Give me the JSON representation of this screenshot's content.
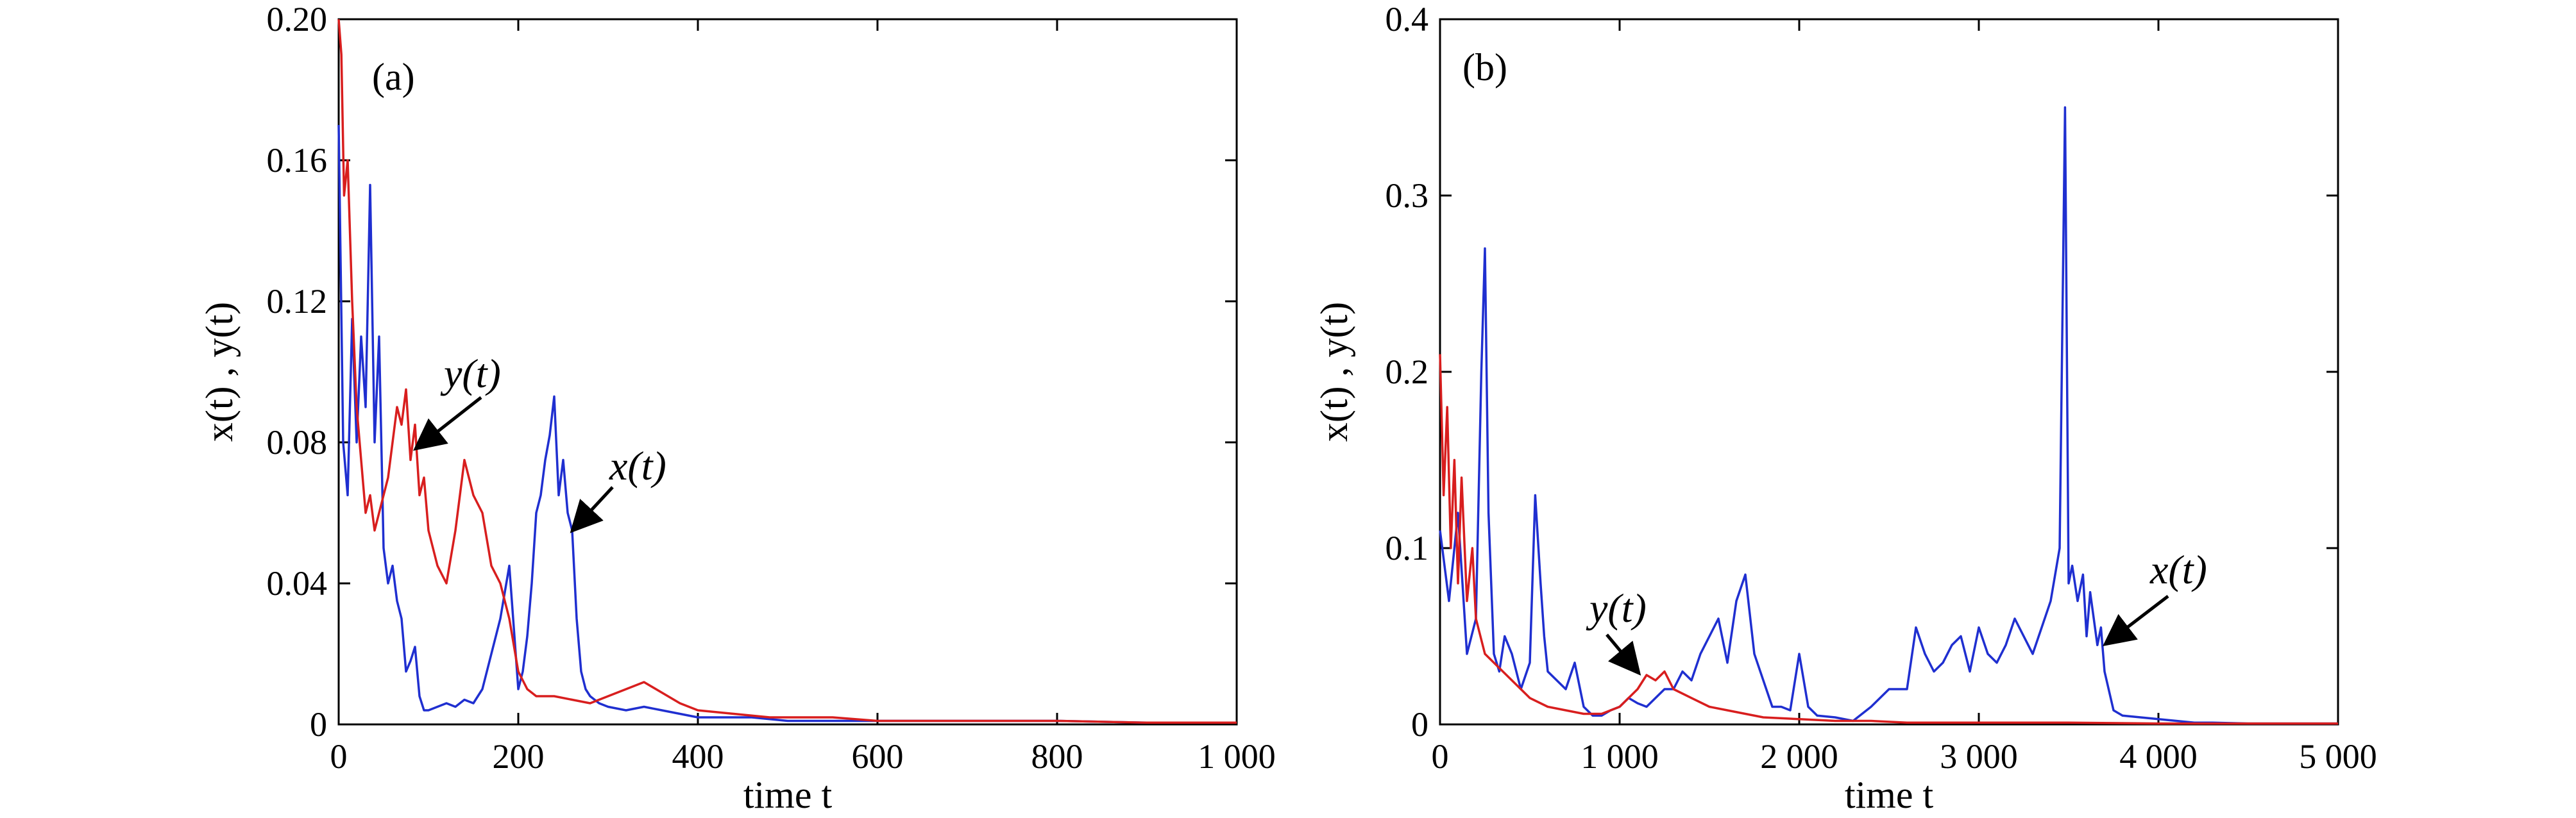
{
  "figure": {
    "panels": [
      {
        "panel_label": "(a)",
        "xlabel": "time t",
        "ylabel": "x(t) , y(t)"
      },
      {
        "panel_label": "(b)",
        "xlabel": "time t",
        "ylabel": "x(t) , y(t)"
      }
    ]
  },
  "colors": {
    "x_series": "#1f2fd0",
    "y_series": "#d81e1e",
    "frame": "#000000"
  },
  "chart_data": [
    {
      "type": "line",
      "panel_label": "(a)",
      "xlabel": "time t",
      "ylabel": "x(t) , y(t)",
      "xlim": [
        0,
        1000
      ],
      "ylim": [
        0,
        0.2
      ],
      "xticks": [
        0,
        200,
        400,
        600,
        800,
        1000
      ],
      "xtick_labels": [
        "0",
        "200",
        "400",
        "600",
        "800",
        "1 000"
      ],
      "yticks": [
        0,
        0.04,
        0.08,
        0.12,
        0.16,
        0.2
      ],
      "ytick_labels": [
        "0",
        "0.04",
        "0.08",
        "0.12",
        "0.16",
        "0.20"
      ],
      "grid": false,
      "annotations": [
        {
          "text": "y(t)",
          "points_to": [
            95,
            0.078
          ]
        },
        {
          "text": "x(t)",
          "points_to": [
            262,
            0.06
          ]
        }
      ],
      "series": [
        {
          "name": "x(t)",
          "color": "#1f2fd0",
          "x": [
            0,
            5,
            10,
            15,
            20,
            25,
            30,
            35,
            40,
            45,
            50,
            55,
            60,
            65,
            70,
            75,
            80,
            85,
            90,
            95,
            100,
            110,
            120,
            130,
            140,
            150,
            160,
            170,
            180,
            190,
            200,
            205,
            210,
            215,
            220,
            225,
            230,
            235,
            240,
            245,
            250,
            255,
            260,
            265,
            270,
            275,
            280,
            290,
            300,
            320,
            340,
            360,
            380,
            400,
            430,
            460,
            500,
            550,
            600,
            700,
            800,
            900,
            1000
          ],
          "y": [
            0.17,
            0.08,
            0.065,
            0.115,
            0.08,
            0.11,
            0.09,
            0.153,
            0.08,
            0.11,
            0.05,
            0.04,
            0.045,
            0.035,
            0.03,
            0.015,
            0.018,
            0.022,
            0.008,
            0.004,
            0.004,
            0.005,
            0.006,
            0.005,
            0.007,
            0.006,
            0.01,
            0.02,
            0.03,
            0.045,
            0.01,
            0.015,
            0.025,
            0.04,
            0.06,
            0.065,
            0.075,
            0.082,
            0.093,
            0.065,
            0.075,
            0.06,
            0.055,
            0.03,
            0.015,
            0.01,
            0.008,
            0.006,
            0.005,
            0.004,
            0.005,
            0.004,
            0.003,
            0.002,
            0.002,
            0.002,
            0.001,
            0.001,
            0.001,
            0.001,
            0.001,
            0.0005,
            0.0005
          ]
        },
        {
          "name": "y(t)",
          "color": "#d81e1e",
          "x": [
            0,
            3,
            6,
            10,
            15,
            20,
            25,
            30,
            35,
            40,
            45,
            50,
            55,
            60,
            65,
            70,
            75,
            80,
            85,
            90,
            95,
            100,
            110,
            120,
            130,
            140,
            150,
            160,
            170,
            180,
            190,
            200,
            210,
            220,
            240,
            260,
            280,
            300,
            320,
            340,
            360,
            380,
            400,
            440,
            480,
            550,
            600,
            700,
            800,
            900,
            1000
          ],
          "y": [
            0.2,
            0.19,
            0.15,
            0.16,
            0.12,
            0.09,
            0.075,
            0.06,
            0.065,
            0.055,
            0.06,
            0.065,
            0.07,
            0.08,
            0.09,
            0.085,
            0.095,
            0.075,
            0.085,
            0.065,
            0.07,
            0.055,
            0.045,
            0.04,
            0.055,
            0.075,
            0.065,
            0.06,
            0.045,
            0.04,
            0.03,
            0.015,
            0.01,
            0.008,
            0.008,
            0.007,
            0.006,
            0.008,
            0.01,
            0.012,
            0.009,
            0.006,
            0.004,
            0.003,
            0.002,
            0.002,
            0.001,
            0.001,
            0.001,
            0.0005,
            0.0005
          ]
        }
      ]
    },
    {
      "type": "line",
      "panel_label": "(b)",
      "xlabel": "time t",
      "ylabel": "x(t) , y(t)",
      "xlim": [
        0,
        5000
      ],
      "ylim": [
        0,
        0.4
      ],
      "xticks": [
        0,
        1000,
        2000,
        3000,
        4000,
        5000
      ],
      "xtick_labels": [
        "0",
        "1 000",
        "2 000",
        "3 000",
        "4 000",
        "5 000"
      ],
      "yticks": [
        0,
        0.1,
        0.2,
        0.3,
        0.4
      ],
      "ytick_labels": [
        "0",
        "0.1",
        "0.2",
        "0.3",
        "0.4"
      ],
      "grid": false,
      "annotations": [
        {
          "text": "y(t)",
          "points_to": [
            1100,
            0.025
          ]
        },
        {
          "text": "x(t)",
          "points_to": [
            3680,
            0.062
          ]
        }
      ],
      "series": [
        {
          "name": "x(t)",
          "color": "#1f2fd0",
          "x": [
            0,
            50,
            100,
            150,
            200,
            230,
            250,
            270,
            300,
            330,
            360,
            400,
            450,
            500,
            530,
            560,
            580,
            600,
            650,
            700,
            750,
            800,
            850,
            900,
            950,
            1000,
            1050,
            1100,
            1150,
            1200,
            1250,
            1300,
            1350,
            1400,
            1450,
            1500,
            1550,
            1600,
            1650,
            1700,
            1750,
            1800,
            1850,
            1900,
            1950,
            2000,
            2050,
            2100,
            2200,
            2300,
            2400,
            2500,
            2600,
            2650,
            2700,
            2750,
            2800,
            2850,
            2900,
            2950,
            3000,
            3050,
            3100,
            3150,
            3200,
            3250,
            3300,
            3350,
            3400,
            3450,
            3480,
            3500,
            3520,
            3550,
            3580,
            3600,
            3620,
            3640,
            3660,
            3680,
            3700,
            3750,
            3800,
            3900,
            4000,
            4100,
            4200,
            4300,
            4500,
            5000
          ],
          "y": [
            0.11,
            0.07,
            0.12,
            0.04,
            0.06,
            0.2,
            0.27,
            0.12,
            0.04,
            0.03,
            0.05,
            0.04,
            0.02,
            0.035,
            0.13,
            0.08,
            0.05,
            0.03,
            0.025,
            0.02,
            0.035,
            0.01,
            0.005,
            0.005,
            0.008,
            0.01,
            0.015,
            0.012,
            0.01,
            0.015,
            0.02,
            0.02,
            0.03,
            0.025,
            0.04,
            0.05,
            0.06,
            0.035,
            0.07,
            0.085,
            0.04,
            0.025,
            0.01,
            0.01,
            0.008,
            0.04,
            0.01,
            0.005,
            0.004,
            0.002,
            0.01,
            0.02,
            0.02,
            0.055,
            0.04,
            0.03,
            0.035,
            0.045,
            0.05,
            0.03,
            0.055,
            0.04,
            0.035,
            0.045,
            0.06,
            0.05,
            0.04,
            0.055,
            0.07,
            0.1,
            0.35,
            0.08,
            0.09,
            0.07,
            0.085,
            0.05,
            0.075,
            0.06,
            0.045,
            0.055,
            0.03,
            0.008,
            0.005,
            0.004,
            0.003,
            0.002,
            0.001,
            0.001,
            0.0005,
            0.0005
          ]
        },
        {
          "name": "y(t)",
          "color": "#d81e1e",
          "x": [
            0,
            20,
            40,
            60,
            80,
            100,
            120,
            150,
            180,
            200,
            250,
            300,
            350,
            400,
            450,
            500,
            600,
            700,
            800,
            900,
            1000,
            1050,
            1100,
            1150,
            1200,
            1250,
            1300,
            1400,
            1500,
            1600,
            1700,
            1800,
            2000,
            2200,
            2400,
            2600,
            3000,
            3500,
            4000,
            4500,
            5000
          ],
          "y": [
            0.21,
            0.13,
            0.18,
            0.1,
            0.15,
            0.08,
            0.14,
            0.07,
            0.1,
            0.06,
            0.04,
            0.035,
            0.03,
            0.025,
            0.02,
            0.015,
            0.01,
            0.008,
            0.006,
            0.006,
            0.01,
            0.015,
            0.02,
            0.028,
            0.025,
            0.03,
            0.02,
            0.015,
            0.01,
            0.008,
            0.006,
            0.004,
            0.003,
            0.002,
            0.002,
            0.001,
            0.001,
            0.001,
            0.0005,
            0.0005,
            0.0005
          ]
        }
      ]
    }
  ]
}
